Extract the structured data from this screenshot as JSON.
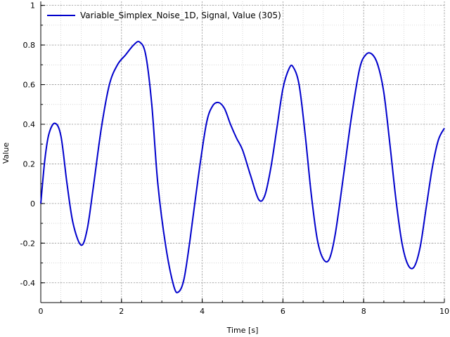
{
  "chart_data": {
    "type": "line",
    "xlabel": "Time [s]",
    "ylabel": "Value",
    "xlim": [
      0,
      10
    ],
    "ylim": [
      -0.5,
      1.02
    ],
    "x_ticks": [
      0,
      2,
      4,
      6,
      8,
      10
    ],
    "x_tick_labels": [
      "0",
      "2",
      "4",
      "6",
      "8",
      "10"
    ],
    "y_ticks": [
      -0.4,
      -0.2,
      0,
      0.2,
      0.4,
      0.6,
      0.8,
      1
    ],
    "y_tick_labels": [
      "-0.4",
      "-0.2",
      "0",
      "0.2",
      "0.4",
      "0.6",
      "0.8",
      "1"
    ],
    "grid": true,
    "legend_position": "top-left",
    "series": [
      {
        "name": "Variable_Simplex_Noise_1D, Signal, Value  (305)",
        "color": "#0000cc",
        "x": [
          0,
          0.1,
          0.2,
          0.35,
          0.5,
          0.65,
          0.8,
          1.0,
          1.15,
          1.3,
          1.5,
          1.7,
          1.9,
          2.1,
          2.3,
          2.45,
          2.6,
          2.75,
          2.9,
          3.1,
          3.3,
          3.42,
          3.55,
          3.7,
          3.9,
          4.1,
          4.25,
          4.4,
          4.55,
          4.7,
          4.85,
          5.0,
          5.2,
          5.4,
          5.55,
          5.7,
          5.85,
          6.0,
          6.15,
          6.25,
          6.4,
          6.55,
          6.7,
          6.85,
          7.0,
          7.15,
          7.3,
          7.5,
          7.7,
          7.9,
          8.05,
          8.2,
          8.35,
          8.5,
          8.65,
          8.8,
          8.95,
          9.1,
          9.25,
          9.4,
          9.55,
          9.7,
          9.85,
          10.0
        ],
        "y": [
          0,
          0.22,
          0.35,
          0.405,
          0.34,
          0.1,
          -0.1,
          -0.21,
          -0.13,
          0.08,
          0.38,
          0.6,
          0.7,
          0.75,
          0.8,
          0.815,
          0.75,
          0.5,
          0.1,
          -0.22,
          -0.42,
          -0.445,
          -0.38,
          -0.18,
          0.13,
          0.4,
          0.49,
          0.51,
          0.48,
          0.4,
          0.33,
          0.27,
          0.14,
          0.02,
          0.04,
          0.18,
          0.38,
          0.58,
          0.68,
          0.69,
          0.6,
          0.35,
          0.05,
          -0.18,
          -0.28,
          -0.28,
          -0.15,
          0.14,
          0.44,
          0.68,
          0.75,
          0.755,
          0.7,
          0.56,
          0.3,
          0.02,
          -0.2,
          -0.31,
          -0.32,
          -0.22,
          -0.02,
          0.18,
          0.32,
          0.38
        ]
      }
    ]
  }
}
